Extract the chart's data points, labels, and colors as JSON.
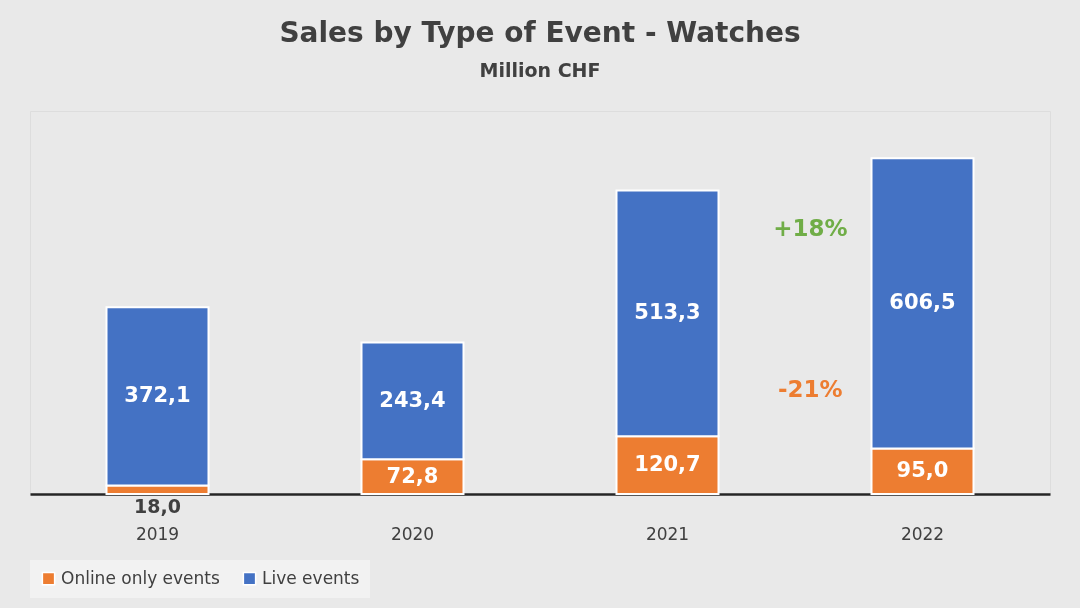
{
  "chart_data": {
    "type": "bar",
    "title": "Sales by Type of Event - Watches",
    "subtitle": "Million CHF",
    "categories": [
      "2019",
      "2020",
      "2021",
      "2022"
    ],
    "stacked": true,
    "series": [
      {
        "name": "Online only events",
        "color": "#ed7d31",
        "values": [
          18.0,
          72.8,
          120.7,
          95.0
        ],
        "value_labels": [
          "18,0",
          "72,8",
          "120,7",
          "95,0"
        ]
      },
      {
        "name": "Live events",
        "color": "#4472c4",
        "values": [
          372.1,
          243.4,
          513.3,
          606.5
        ],
        "value_labels": [
          "372,1",
          "243,4",
          "513,3",
          "606,5"
        ]
      }
    ],
    "annotations": [
      "+18%",
      "-21%"
    ],
    "legend": "bottom",
    "grid": false
  }
}
